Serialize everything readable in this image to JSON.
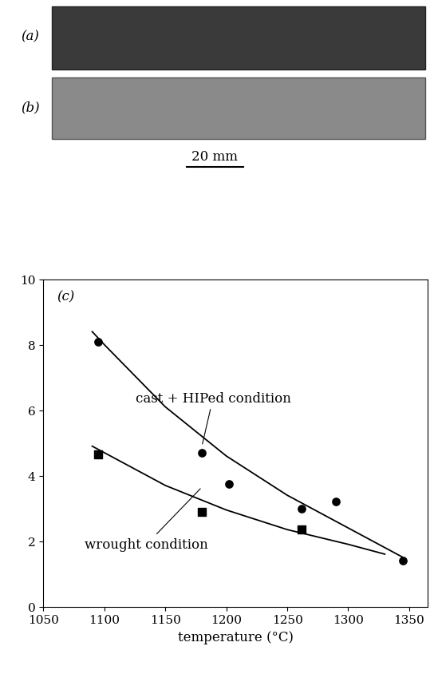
{
  "photos": {
    "labels": [
      "(a)",
      "(b)"
    ],
    "scale_bar": "20 mm"
  },
  "chart_data": {
    "type": "scatter",
    "panel_label": "(c)",
    "x_label": "temperature (°C)",
    "xlim": [
      1050,
      1365
    ],
    "xticks": [
      1050,
      1100,
      1150,
      1200,
      1250,
      1300,
      1350
    ],
    "ylim": [
      0,
      10
    ],
    "yticks": [
      0,
      2,
      4,
      6,
      8,
      10
    ],
    "grid": false,
    "series": [
      {
        "type": "scatter",
        "marker": "circle",
        "color": "#000000",
        "x": [
          1095,
          1180,
          1202,
          1262,
          1290,
          1345
        ],
        "values": [
          8.1,
          4.7,
          3.75,
          3.0,
          3.2,
          1.4
        ]
      },
      {
        "type": "scatter",
        "marker": "square",
        "color": "#000000",
        "x": [
          1095,
          1180,
          1262
        ],
        "values": [
          4.65,
          2.9,
          2.35
        ]
      },
      {
        "type": "line",
        "name": "cast + HIPed condition",
        "line_style": "solid",
        "color": "#000000",
        "x": [
          1090,
          1100,
          1150,
          1200,
          1250,
          1300,
          1345
        ],
        "values": [
          8.4,
          8.0,
          6.1,
          4.6,
          3.4,
          2.4,
          1.5
        ]
      },
      {
        "type": "line",
        "name": "wrought condition",
        "line_style": "solid",
        "color": "#000000",
        "x": [
          1090,
          1100,
          1150,
          1200,
          1250,
          1300,
          1330
        ],
        "values": [
          4.9,
          4.7,
          3.7,
          2.95,
          2.35,
          1.9,
          1.6
        ]
      }
    ]
  }
}
